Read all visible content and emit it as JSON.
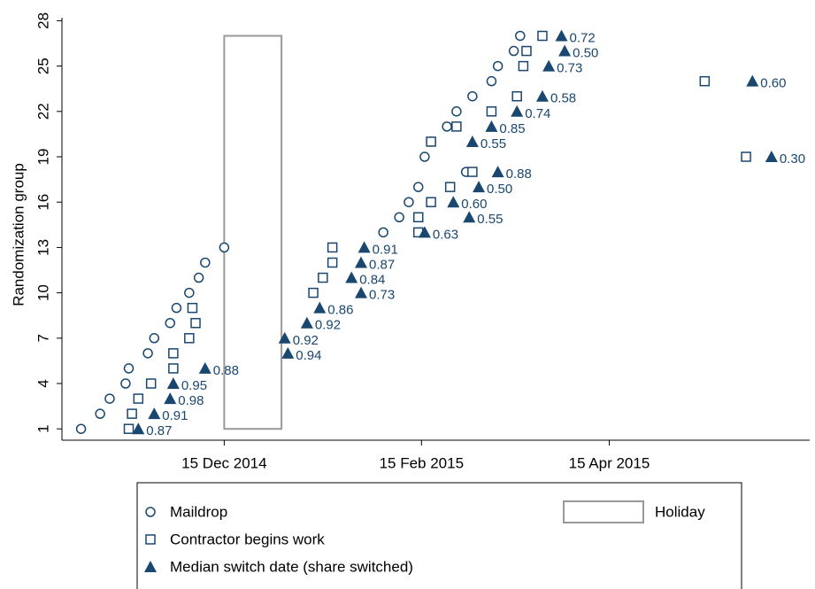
{
  "chart_data": {
    "type": "scatter",
    "y_label": "Randomization group",
    "xlim": [
      "2014-10-25",
      "2015-06-17"
    ],
    "xticks": [
      {
        "value": "2014-12-15",
        "label": "15 Dec 2014"
      },
      {
        "value": "2015-02-15",
        "label": "15 Feb 2015"
      },
      {
        "value": "2015-04-15",
        "label": "15 Apr 2015"
      }
    ],
    "ylim": [
      0.25,
      28.2
    ],
    "yticks": [
      1,
      4,
      7,
      10,
      13,
      16,
      19,
      22,
      25,
      28
    ],
    "grid": false,
    "series": [
      {
        "name": "Maildrop",
        "marker": "circle",
        "color": "#1a476f",
        "x": [
          "2014-10-31",
          "2014-11-06",
          "2014-11-09",
          "2014-11-14",
          "2014-11-15",
          "2014-11-21",
          "2014-11-23",
          "2014-11-28",
          "2014-11-30",
          "2014-12-04",
          "2014-12-07",
          "2014-12-09",
          "2014-12-15",
          "2015-02-03",
          "2015-02-08",
          "2015-02-11",
          "2015-02-14",
          "2015-03-01",
          "2015-02-16",
          "2015-02-18",
          "2015-02-23",
          "2015-02-26",
          "2015-03-03",
          "2015-03-09",
          "2015-03-11",
          "2015-03-16",
          "2015-03-18"
        ],
        "values": [
          1,
          2,
          3,
          4,
          5,
          6,
          7,
          8,
          9,
          10,
          11,
          12,
          13,
          14,
          15,
          16,
          17,
          18,
          19,
          20,
          21,
          22,
          23,
          24,
          25,
          26,
          27
        ]
      },
      {
        "name": "Contractor begins work",
        "marker": "square",
        "color": "#1a476f",
        "x": [
          "2014-11-15",
          "2014-11-16",
          "2014-11-18",
          "2014-11-22",
          "2014-11-29",
          "2014-11-29",
          "2014-12-04",
          "2014-12-06",
          "2014-12-05",
          "2015-01-12",
          "2015-01-15",
          "2015-01-18",
          "2015-01-18",
          "2015-02-14",
          "2015-02-14",
          "2015-02-18",
          "2015-02-24",
          "2015-03-03",
          "2015-05-28",
          "2015-02-18",
          "2015-02-26",
          "2015-03-09",
          "2015-03-17",
          "2015-05-15",
          "2015-03-19",
          "2015-03-20",
          "2015-03-25"
        ],
        "values": [
          1,
          2,
          3,
          4,
          5,
          6,
          7,
          8,
          9,
          10,
          11,
          12,
          13,
          14,
          15,
          16,
          17,
          18,
          19,
          20,
          21,
          22,
          23,
          24,
          25,
          26,
          27
        ]
      },
      {
        "name": "Median switch date (share switched)",
        "marker": "triangle",
        "color": "#1a476f",
        "x": [
          "2014-11-18",
          "2014-11-23",
          "2014-11-28",
          "2014-11-29",
          "2014-12-09",
          "2015-01-04",
          "2015-01-03",
          "2015-01-10",
          "2015-01-14",
          "2015-01-27",
          "2015-01-24",
          "2015-01-27",
          "2015-01-28",
          "2015-02-16",
          "2015-03-02",
          "2015-02-25",
          "2015-03-05",
          "2015-03-11",
          "2015-06-05",
          "2015-03-03",
          "2015-03-09",
          "2015-03-17",
          "2015-03-25",
          "2015-05-30",
          "2015-03-27",
          "2015-04-01",
          "2015-03-31"
        ],
        "values": [
          1,
          2,
          3,
          4,
          5,
          6,
          7,
          8,
          9,
          10,
          11,
          12,
          13,
          14,
          15,
          16,
          17,
          18,
          19,
          20,
          21,
          22,
          23,
          24,
          25,
          26,
          27
        ],
        "share_labels": [
          "0.87",
          "0.91",
          "0.98",
          "0.95",
          "0.88",
          "0.94",
          "0.92",
          "0.92",
          "0.86",
          "0.73",
          "0.84",
          "0.87",
          "0.91",
          "0.63",
          "0.55",
          "0.60",
          "0.50",
          "0.88",
          "0.30",
          "0.55",
          "0.85",
          "0.74",
          "0.58",
          "0.60",
          "0.73",
          "0.50",
          "0.72"
        ]
      }
    ],
    "holiday": {
      "name": "Holiday",
      "x": [
        "2014-12-15",
        "2015-01-02"
      ],
      "y": [
        1,
        27
      ],
      "color": "#999999"
    }
  }
}
